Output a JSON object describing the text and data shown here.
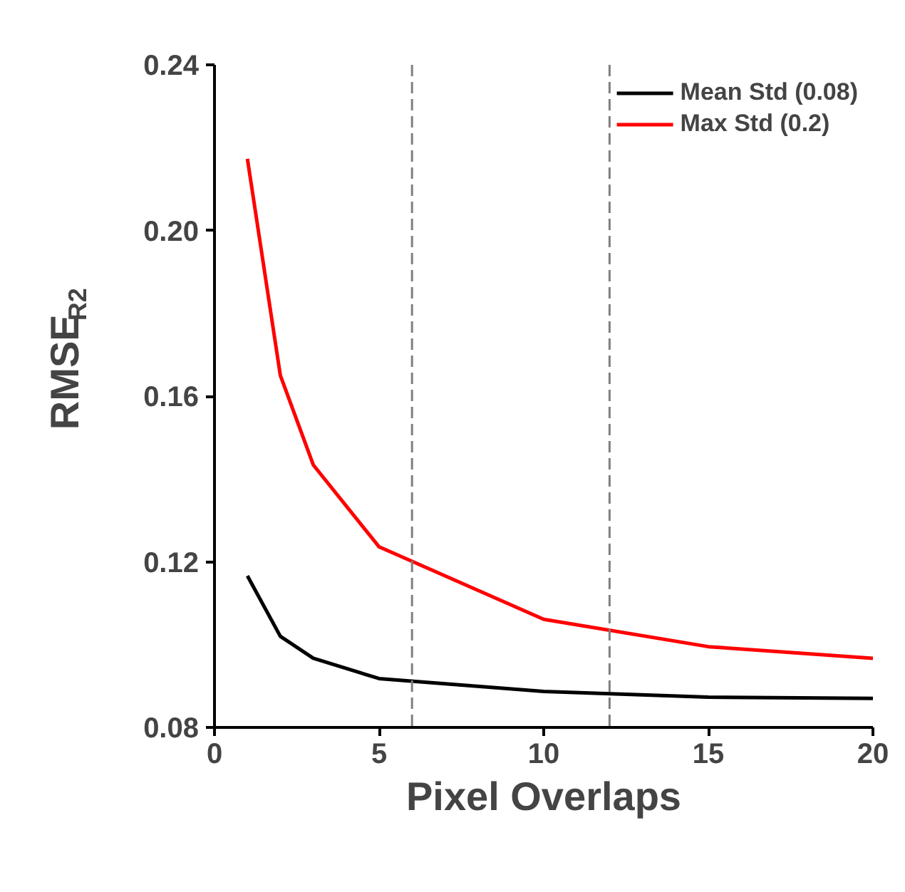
{
  "chart_data": {
    "type": "line",
    "xlabel": "Pixel Overlaps",
    "ylabel": "RMSE$_{R2}$",
    "x": [
      1,
      2,
      3,
      5,
      10,
      15,
      20
    ],
    "series": [
      {
        "name": "Mean Std (0.08)",
        "color": "#000000",
        "values": [
          0.1166,
          0.102,
          0.0967,
          0.0918,
          0.0887,
          0.0873,
          0.087
        ]
      },
      {
        "name": "Max Std (0.2)",
        "color": "#ff0000",
        "values": [
          0.2173,
          0.165,
          0.1434,
          0.1236,
          0.1061,
          0.0995,
          0.0967
        ]
      }
    ],
    "xlim": [
      0,
      20
    ],
    "ylim": [
      0.08,
      0.24
    ],
    "xticks": [
      0,
      5,
      10,
      15,
      20
    ],
    "yticks": [
      {
        "value": 0.08,
        "label": "0.08"
      },
      {
        "value": 0.12,
        "label": "0.12"
      },
      {
        "value": 0.16,
        "label": "0.16"
      },
      {
        "value": 0.2,
        "label": "0.20"
      },
      {
        "value": 0.24,
        "label": "0.24"
      }
    ],
    "ref_lines": [
      {
        "axis": "x",
        "value": 6,
        "label": null,
        "color": "#808080",
        "line_style": "dashed"
      },
      {
        "axis": "x",
        "value": 12,
        "label": null,
        "color": "#808080",
        "line_style": "dashed"
      }
    ],
    "grid": false,
    "legend": "top right",
    "marker": "none",
    "line_style": "solid"
  }
}
